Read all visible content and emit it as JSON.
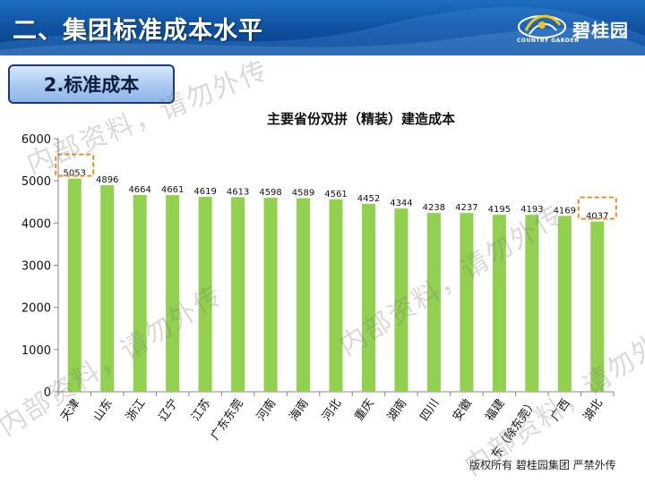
{
  "header": {
    "title": "二、集团标准成本水平"
  },
  "logo": {
    "name": "碧桂园",
    "sub": "COUNTRY GARDEN",
    "icon": "country-garden-logo-icon"
  },
  "section": {
    "label": "2.标准成本"
  },
  "footer": {
    "text": "版权所有  碧桂园集团 严禁外传"
  },
  "watermarks": [
    "内部资料，请勿外传",
    "内部资料，请勿外传",
    "内部资料，请勿外传",
    "内部资料，请勿外传"
  ],
  "colors": {
    "header": "#0e4f9e",
    "bar": "#92d050",
    "highlight": "#f08a24",
    "button_border": "#1b3a78"
  },
  "chart_data": {
    "type": "bar",
    "title": "主要省份双拼（精装）建造成本",
    "categories": [
      "天津",
      "山东",
      "浙江",
      "辽宁",
      "江苏",
      "广东东莞",
      "河南",
      "海南",
      "河北",
      "重庆",
      "湖南",
      "四川",
      "安徽",
      "福建",
      "广东（除东莞）",
      "广西",
      "湖北"
    ],
    "values": [
      5053,
      4896,
      4664,
      4661,
      4619,
      4613,
      4598,
      4589,
      4561,
      4452,
      4344,
      4238,
      4237,
      4195,
      4193,
      4169,
      4037
    ],
    "ylim": [
      0,
      6000
    ],
    "yticks": [
      0,
      1000,
      2000,
      3000,
      4000,
      5000,
      6000
    ],
    "grid": false,
    "legend": "none",
    "highlighted_categories": [
      "天津",
      "湖北"
    ]
  }
}
